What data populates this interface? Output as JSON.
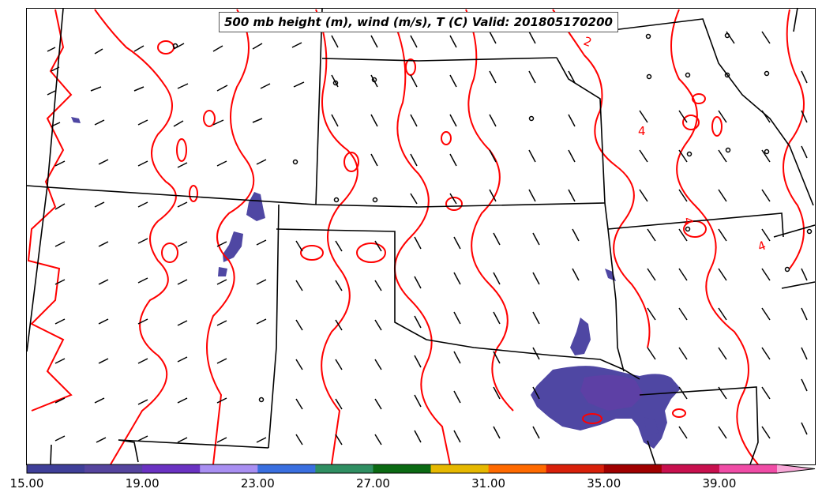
{
  "title": "500 mb height (m), wind (m/s), T (C) Valid: 201805170200",
  "contour_labels": [
    "2",
    "4",
    "4",
    "4"
  ],
  "colorbar": {
    "ticks": [
      "15.00",
      "19.00",
      "23.00",
      "27.00",
      "31.00",
      "35.00",
      "39.00"
    ],
    "colors": [
      "#3f3f99",
      "#55449e",
      "#6a32c2",
      "#a98ff2",
      "#3a6fe0",
      "#2f8f62",
      "#0b6a13",
      "#e6b800",
      "#ff6a00",
      "#d8200a",
      "#a00000",
      "#c8104e",
      "#f04ca6",
      "#f8a8d8"
    ]
  },
  "colors": {
    "temperature_contour": "#ff0000",
    "border": "#000000",
    "shading": "#5044a0"
  }
}
